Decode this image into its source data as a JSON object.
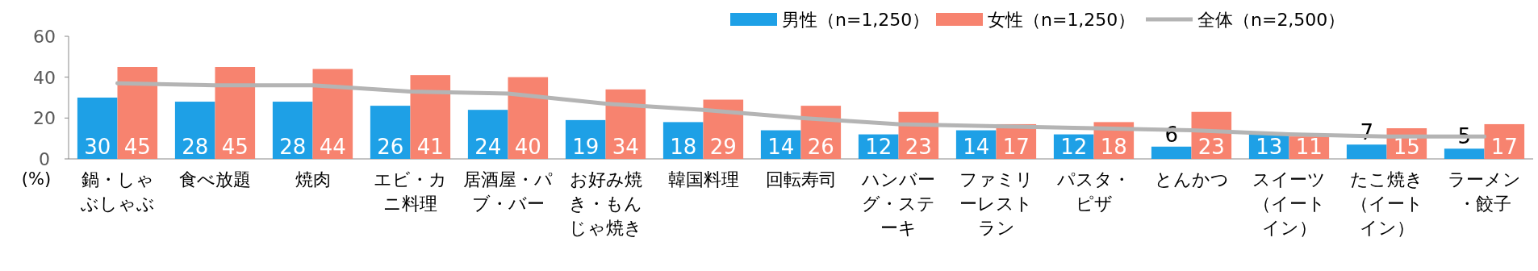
{
  "chart_data": {
    "type": "bar",
    "ylabel": "(%)",
    "ylim": [
      0,
      60
    ],
    "yticks": [
      0,
      20,
      40,
      60
    ],
    "grid": false,
    "legend": "top right",
    "categories": [
      "鍋・しゃぶしゃぶ",
      "食べ放題",
      "焼肉",
      "エビ・カニ料理",
      "居酒屋・パブ・バー",
      "お好み焼き・もんじゃ焼き",
      "韓国料理",
      "回転寿司",
      "ハンバーグ・ステーキ",
      "ファミリーレストラン",
      "パスタ・ピザ",
      "とんかつ",
      "スイーツ（イートイン）",
      "たこ焼き（イートイン）",
      "ラーメン・餃子"
    ],
    "series": [
      {
        "name": "男性（n=1,250）",
        "color": "#1ea0e6",
        "values": [
          30,
          28,
          28,
          26,
          24,
          19,
          18,
          14,
          12,
          14,
          12,
          6,
          13,
          7,
          5
        ],
        "value_labels": [
          "30",
          "28",
          "28",
          "26",
          "24",
          "19",
          "18",
          "14",
          "12",
          "14",
          "12",
          "6",
          "13",
          "7",
          "5"
        ]
      },
      {
        "name": "女性（n=1,250）",
        "color": "#f7836f",
        "values": [
          45,
          45,
          44,
          41,
          40,
          34,
          29,
          26,
          23,
          17,
          18,
          23,
          11,
          15,
          17
        ],
        "value_labels": [
          "45",
          "45",
          "44",
          "41",
          "40",
          "34",
          "29",
          "26",
          "23",
          "17",
          "18",
          "23",
          "11",
          "15",
          "17"
        ]
      },
      {
        "name": "全体（n=2,500）",
        "type": "line",
        "color": "#b4b4b4",
        "marker": "none",
        "values": [
          37,
          36,
          36,
          33,
          32,
          27,
          24,
          20,
          17,
          16,
          15,
          14,
          12,
          11,
          11
        ]
      }
    ]
  }
}
